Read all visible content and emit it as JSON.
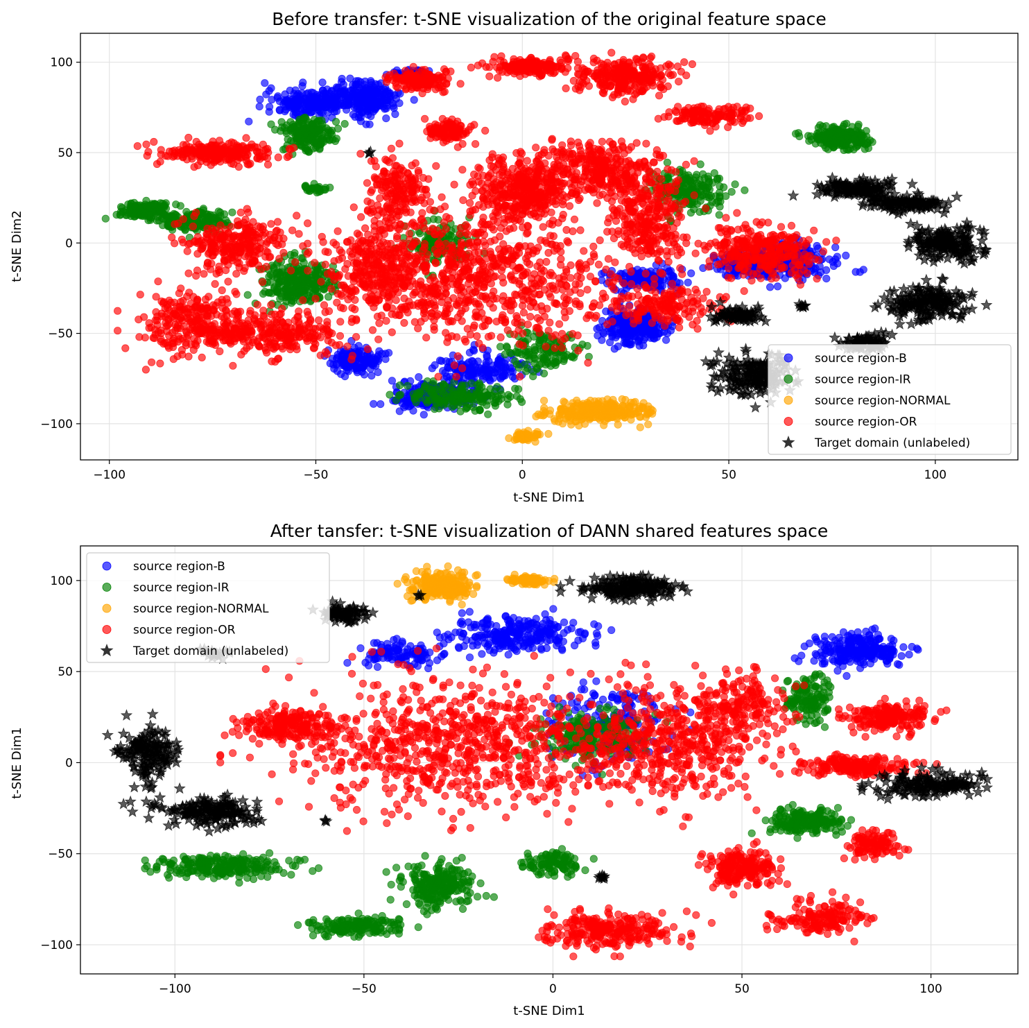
{
  "chart_data": [
    {
      "type": "scatter",
      "title": "Before transfer: t-SNE visualization of the original feature space",
      "xlabel": "t-SNE Dim1",
      "ylabel": "t-SNE Dim2",
      "xlim": [
        -107,
        120
      ],
      "ylim": [
        -120,
        116
      ],
      "xticks": [
        -100,
        -50,
        0,
        50,
        100
      ],
      "yticks": [
        -100,
        -50,
        0,
        50,
        100
      ],
      "xtick_labels": [
        "−100",
        "−50",
        "0",
        "50",
        "100"
      ],
      "ytick_labels": [
        "−100",
        "−50",
        "0",
        "50",
        "100"
      ],
      "grid": true,
      "legend_position": "lower-right",
      "series": [
        {
          "name": "source region-B",
          "color": "#0000ff",
          "marker": "circle",
          "clusters": [
            {
              "cx": -50,
              "cy": 78,
              "rx": 10,
              "ry": 6,
              "w": 1
            },
            {
              "cx": -37,
              "cy": 80,
              "rx": 6,
              "ry": 8,
              "w": 0.8
            },
            {
              "cx": -27,
              "cy": 93,
              "rx": 4,
              "ry": 3,
              "w": 0.2
            },
            {
              "cx": 27,
              "cy": -46,
              "rx": 6,
              "ry": 8,
              "w": 1
            },
            {
              "cx": 30,
              "cy": -20,
              "rx": 8,
              "ry": 5,
              "w": 0.5
            },
            {
              "cx": -22,
              "cy": -85,
              "rx": 8,
              "ry": 6,
              "w": 0.8
            },
            {
              "cx": -10,
              "cy": -70,
              "rx": 8,
              "ry": 8,
              "w": 0.6
            },
            {
              "cx": 53,
              "cy": -12,
              "rx": 6,
              "ry": 5,
              "w": 0.6
            },
            {
              "cx": 65,
              "cy": -10,
              "rx": 10,
              "ry": 8,
              "w": 0.9
            },
            {
              "cx": -40,
              "cy": -65,
              "rx": 5,
              "ry": 6,
              "w": 0.5
            }
          ]
        },
        {
          "name": "source region-IR",
          "color": "#008000",
          "marker": "circle",
          "clusters": [
            {
              "cx": 77,
              "cy": 58,
              "rx": 6,
              "ry": 5,
              "w": 0.8
            },
            {
              "cx": -55,
              "cy": -22,
              "rx": 7,
              "ry": 10,
              "w": 1
            },
            {
              "cx": -52,
              "cy": 60,
              "rx": 5,
              "ry": 8,
              "w": 0.7
            },
            {
              "cx": -92,
              "cy": 18,
              "rx": 5,
              "ry": 4,
              "w": 0.5
            },
            {
              "cx": -80,
              "cy": 12,
              "rx": 8,
              "ry": 5,
              "w": 0.6
            },
            {
              "cx": -15,
              "cy": -85,
              "rx": 10,
              "ry": 6,
              "w": 0.7
            },
            {
              "cx": -20,
              "cy": 0,
              "rx": 6,
              "ry": 10,
              "w": 0.5
            },
            {
              "cx": 40,
              "cy": 30,
              "rx": 8,
              "ry": 10,
              "w": 0.7
            },
            {
              "cx": 5,
              "cy": -60,
              "rx": 8,
              "ry": 10,
              "w": 0.5
            },
            {
              "cx": -50,
              "cy": 30,
              "rx": 3,
              "ry": 2,
              "w": 0.1
            }
          ]
        },
        {
          "name": "source region-NORMAL",
          "color": "#ffa500",
          "marker": "circle",
          "clusters": [
            {
              "cx": 18,
              "cy": -93,
              "rx": 10,
              "ry": 5,
              "w": 1
            },
            {
              "cx": 1,
              "cy": -107,
              "rx": 3,
              "ry": 2,
              "w": 0.2
            }
          ]
        },
        {
          "name": "source region-OR",
          "color": "#ff0000",
          "marker": "circle",
          "clusters": [
            {
              "cx": -10,
              "cy": -20,
              "rx": 28,
              "ry": 30,
              "w": 3
            },
            {
              "cx": 0,
              "cy": 30,
              "rx": 10,
              "ry": 15,
              "w": 1.5
            },
            {
              "cx": 20,
              "cy": 40,
              "rx": 12,
              "ry": 12,
              "w": 1.2
            },
            {
              "cx": 25,
              "cy": 92,
              "rx": 10,
              "ry": 8,
              "w": 1
            },
            {
              "cx": 2,
              "cy": 98,
              "rx": 8,
              "ry": 4,
              "w": 0.6
            },
            {
              "cx": -25,
              "cy": 90,
              "rx": 6,
              "ry": 5,
              "w": 0.5
            },
            {
              "cx": -18,
              "cy": 62,
              "rx": 5,
              "ry": 5,
              "w": 0.4
            },
            {
              "cx": -30,
              "cy": 28,
              "rx": 6,
              "ry": 15,
              "w": 0.7
            },
            {
              "cx": -75,
              "cy": 50,
              "rx": 12,
              "ry": 5,
              "w": 0.9
            },
            {
              "cx": -70,
              "cy": 0,
              "rx": 10,
              "ry": 12,
              "w": 1
            },
            {
              "cx": -80,
              "cy": -45,
              "rx": 10,
              "ry": 15,
              "w": 1
            },
            {
              "cx": -60,
              "cy": -50,
              "rx": 15,
              "ry": 10,
              "w": 1
            },
            {
              "cx": 58,
              "cy": -5,
              "rx": 10,
              "ry": 12,
              "w": 1.2
            },
            {
              "cx": 30,
              "cy": 10,
              "rx": 8,
              "ry": 20,
              "w": 1
            },
            {
              "cx": 45,
              "cy": 70,
              "rx": 8,
              "ry": 5,
              "w": 0.5
            },
            {
              "cx": 35,
              "cy": -35,
              "rx": 10,
              "ry": 8,
              "w": 0.6
            },
            {
              "cx": -35,
              "cy": -15,
              "rx": 10,
              "ry": 20,
              "w": 1
            }
          ]
        },
        {
          "name": "Target domain (unlabeled)",
          "color": "#000000",
          "marker": "star",
          "clusters": [
            {
              "cx": 80,
              "cy": 30,
              "rx": 8,
              "ry": 4,
              "w": 0.5
            },
            {
              "cx": 93,
              "cy": 22,
              "rx": 8,
              "ry": 4,
              "w": 0.5
            },
            {
              "cx": 103,
              "cy": 0,
              "rx": 7,
              "ry": 8,
              "w": 0.7
            },
            {
              "cx": 98,
              "cy": -33,
              "rx": 8,
              "ry": 8,
              "w": 0.7
            },
            {
              "cx": 53,
              "cy": -40,
              "rx": 5,
              "ry": 4,
              "w": 0.3
            },
            {
              "cx": 68,
              "cy": -35,
              "rx": 1,
              "ry": 1,
              "w": 0.03
            },
            {
              "cx": 83,
              "cy": -55,
              "rx": 5,
              "ry": 4,
              "w": 0.3
            },
            {
              "cx": 56,
              "cy": -73,
              "rx": 8,
              "ry": 10,
              "w": 0.7
            },
            {
              "cx": -37,
              "cy": 50,
              "rx": 0.5,
              "ry": 0.5,
              "w": 0.01
            }
          ]
        }
      ]
    },
    {
      "type": "scatter",
      "title": "After tansfer: t-SNE visualization of DANN shared features space",
      "xlabel": "t-SNE Dim1",
      "ylabel": "t-SNE Dim1",
      "xlim": [
        -125,
        123
      ],
      "ylim": [
        -116,
        119
      ],
      "xticks": [
        -100,
        -50,
        0,
        50,
        100
      ],
      "yticks": [
        -100,
        -50,
        0,
        50,
        100
      ],
      "xtick_labels": [
        "−100",
        "−50",
        "0",
        "50",
        "100"
      ],
      "ytick_labels": [
        "−100",
        "−50",
        "0",
        "50",
        "100"
      ],
      "grid": true,
      "legend_position": "upper-left",
      "series": [
        {
          "name": "source region-B",
          "color": "#0000ff",
          "marker": "circle",
          "clusters": [
            {
              "cx": -10,
              "cy": 70,
              "rx": 15,
              "ry": 8,
              "w": 1
            },
            {
              "cx": 80,
              "cy": 62,
              "rx": 10,
              "ry": 8,
              "w": 1
            },
            {
              "cx": 15,
              "cy": 20,
              "rx": 12,
              "ry": 15,
              "w": 0.8
            },
            {
              "cx": -40,
              "cy": 60,
              "rx": 8,
              "ry": 5,
              "w": 0.4
            }
          ]
        },
        {
          "name": "source region-IR",
          "color": "#008000",
          "marker": "circle",
          "clusters": [
            {
              "cx": -88,
              "cy": -57,
              "rx": 15,
              "ry": 5,
              "w": 0.9
            },
            {
              "cx": -52,
              "cy": -90,
              "rx": 10,
              "ry": 4,
              "w": 0.6
            },
            {
              "cx": -30,
              "cy": -68,
              "rx": 8,
              "ry": 10,
              "w": 0.9
            },
            {
              "cx": 67,
              "cy": -32,
              "rx": 8,
              "ry": 6,
              "w": 0.7
            },
            {
              "cx": 68,
              "cy": 35,
              "rx": 5,
              "ry": 10,
              "w": 0.5
            },
            {
              "cx": 10,
              "cy": 15,
              "rx": 12,
              "ry": 12,
              "w": 0.7
            },
            {
              "cx": 0,
              "cy": -55,
              "rx": 6,
              "ry": 5,
              "w": 0.4
            }
          ]
        },
        {
          "name": "source region-NORMAL",
          "color": "#ffa500",
          "marker": "circle",
          "clusters": [
            {
              "cx": -30,
              "cy": 97,
              "rx": 7,
              "ry": 6,
              "w": 1
            },
            {
              "cx": -6,
              "cy": 100,
              "rx": 4,
              "ry": 2,
              "w": 0.3
            }
          ]
        },
        {
          "name": "source region-OR",
          "color": "#ff0000",
          "marker": "circle",
          "clusters": [
            {
              "cx": -25,
              "cy": 10,
              "rx": 35,
              "ry": 30,
              "w": 3
            },
            {
              "cx": 30,
              "cy": 10,
              "rx": 20,
              "ry": 25,
              "w": 1.6
            },
            {
              "cx": -70,
              "cy": 20,
              "rx": 10,
              "ry": 8,
              "w": 0.8
            },
            {
              "cx": 88,
              "cy": 25,
              "rx": 10,
              "ry": 6,
              "w": 0.7
            },
            {
              "cx": 80,
              "cy": -2,
              "rx": 12,
              "ry": 4,
              "w": 0.7
            },
            {
              "cx": 50,
              "cy": -58,
              "rx": 8,
              "ry": 8,
              "w": 0.8
            },
            {
              "cx": 15,
              "cy": -92,
              "rx": 15,
              "ry": 8,
              "w": 1
            },
            {
              "cx": 70,
              "cy": -85,
              "rx": 10,
              "ry": 8,
              "w": 0.6
            },
            {
              "cx": 85,
              "cy": -45,
              "rx": 5,
              "ry": 6,
              "w": 0.4
            },
            {
              "cx": 50,
              "cy": 30,
              "rx": 10,
              "ry": 15,
              "w": 0.7
            }
          ]
        },
        {
          "name": "Target domain (unlabeled)",
          "color": "#000000",
          "marker": "star",
          "clusters": [
            {
              "cx": 20,
              "cy": 96,
              "rx": 10,
              "ry": 5,
              "w": 0.7
            },
            {
              "cx": -55,
              "cy": 82,
              "rx": 5,
              "ry": 4,
              "w": 0.3
            },
            {
              "cx": -90,
              "cy": 60,
              "rx": 3,
              "ry": 2,
              "w": 0.1
            },
            {
              "cx": -107,
              "cy": 5,
              "rx": 6,
              "ry": 12,
              "w": 0.6
            },
            {
              "cx": -92,
              "cy": -27,
              "rx": 12,
              "ry": 6,
              "w": 0.7
            },
            {
              "cx": 100,
              "cy": -12,
              "rx": 12,
              "ry": 6,
              "w": 0.6
            },
            {
              "cx": 13,
              "cy": -63,
              "rx": 1,
              "ry": 1,
              "w": 0.03
            },
            {
              "cx": -60,
              "cy": -32,
              "rx": 0.5,
              "ry": 0.5,
              "w": 0.01
            },
            {
              "cx": -35,
              "cy": 92,
              "rx": 0.5,
              "ry": 0.5,
              "w": 0.01
            }
          ]
        }
      ]
    }
  ]
}
